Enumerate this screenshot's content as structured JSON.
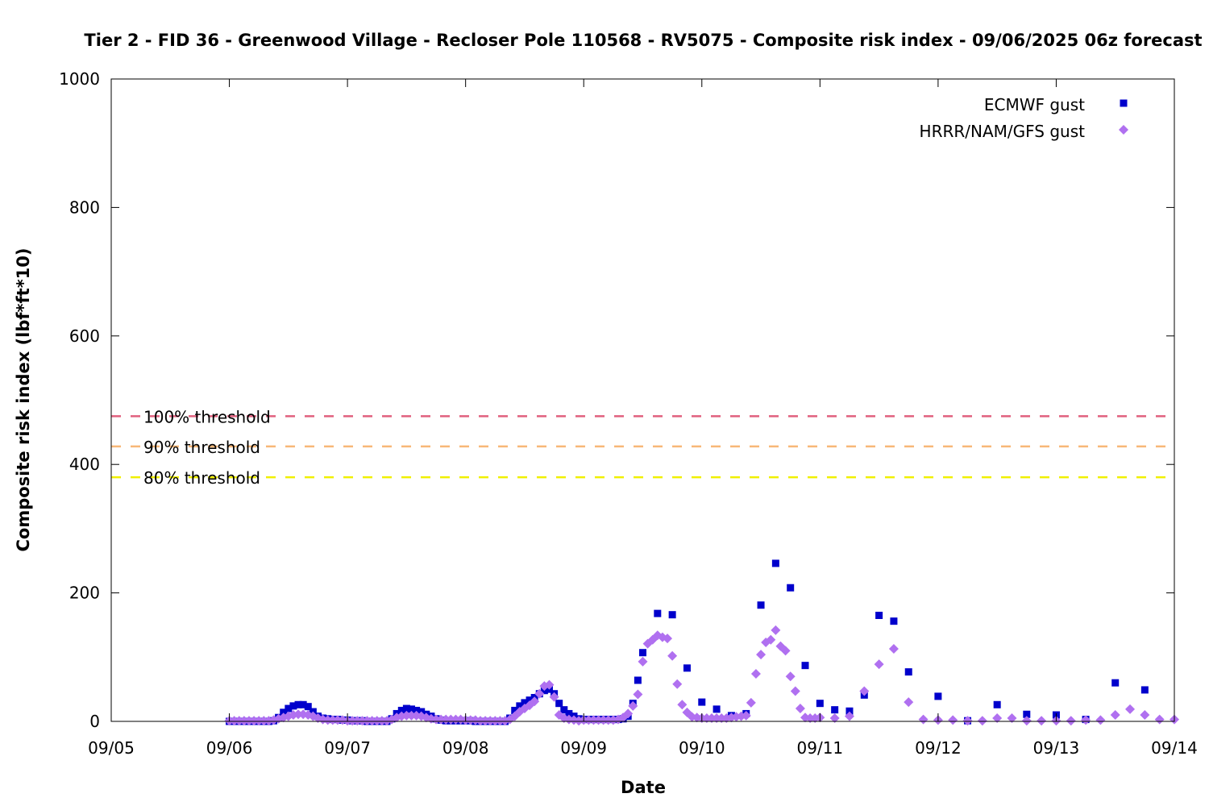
{
  "chart_data": {
    "type": "scatter",
    "title": "Tier 2 - FID 36 - Greenwood Village - Recloser Pole 110568 - RV5075 - Composite risk index - 09/06/2025 06z forecast",
    "xlabel": "Date",
    "ylabel": "Composite risk index (lbf*ft*10)",
    "xlim": [
      "2025-09-05",
      "2025-09-14"
    ],
    "ylim": [
      0,
      1000
    ],
    "x_ticks": [
      "09/05",
      "09/06",
      "09/07",
      "09/08",
      "09/09",
      "09/10",
      "09/11",
      "09/12",
      "09/13",
      "09/14"
    ],
    "y_ticks": [
      "0",
      "200",
      "400",
      "600",
      "800",
      "1000"
    ],
    "grid": false,
    "legend_position": "top-right",
    "thresholds": [
      {
        "label": "100% threshold",
        "value": 475,
        "color": "#e0607e"
      },
      {
        "label": "90% threshold",
        "value": 428,
        "color": "#f8b878"
      },
      {
        "label": "80% threshold",
        "value": 380,
        "color": "#f0f000"
      }
    ],
    "series": [
      {
        "name": "ECMWF gust",
        "color": "#0000cc",
        "marker": "square",
        "points": [
          [
            "2025-09-06 00:00",
            0
          ],
          [
            "2025-09-06 01:00",
            0
          ],
          [
            "2025-09-06 02:00",
            0
          ],
          [
            "2025-09-06 03:00",
            0
          ],
          [
            "2025-09-06 04:00",
            0
          ],
          [
            "2025-09-06 05:00",
            0
          ],
          [
            "2025-09-06 06:00",
            0
          ],
          [
            "2025-09-06 07:00",
            0
          ],
          [
            "2025-09-06 08:00",
            0
          ],
          [
            "2025-09-06 09:00",
            1
          ],
          [
            "2025-09-06 10:00",
            6
          ],
          [
            "2025-09-06 11:00",
            14
          ],
          [
            "2025-09-06 12:00",
            20
          ],
          [
            "2025-09-06 13:00",
            24
          ],
          [
            "2025-09-06 14:00",
            26
          ],
          [
            "2025-09-06 15:00",
            26
          ],
          [
            "2025-09-06 16:00",
            23
          ],
          [
            "2025-09-06 17:00",
            15
          ],
          [
            "2025-09-06 18:00",
            8
          ],
          [
            "2025-09-06 19:00",
            5
          ],
          [
            "2025-09-06 20:00",
            4
          ],
          [
            "2025-09-06 21:00",
            3
          ],
          [
            "2025-09-06 22:00",
            3
          ],
          [
            "2025-09-06 23:00",
            2
          ],
          [
            "2025-09-07 00:00",
            2
          ],
          [
            "2025-09-07 01:00",
            1
          ],
          [
            "2025-09-07 02:00",
            1
          ],
          [
            "2025-09-07 03:00",
            1
          ],
          [
            "2025-09-07 04:00",
            0
          ],
          [
            "2025-09-07 05:00",
            0
          ],
          [
            "2025-09-07 06:00",
            0
          ],
          [
            "2025-09-07 07:00",
            0
          ],
          [
            "2025-09-07 08:00",
            0
          ],
          [
            "2025-09-07 09:00",
            4
          ],
          [
            "2025-09-07 10:00",
            12
          ],
          [
            "2025-09-07 11:00",
            17
          ],
          [
            "2025-09-07 12:00",
            20
          ],
          [
            "2025-09-07 13:00",
            19
          ],
          [
            "2025-09-07 14:00",
            17
          ],
          [
            "2025-09-07 15:00",
            15
          ],
          [
            "2025-09-07 16:00",
            11
          ],
          [
            "2025-09-07 17:00",
            8
          ],
          [
            "2025-09-07 18:00",
            4
          ],
          [
            "2025-09-07 19:00",
            2
          ],
          [
            "2025-09-07 20:00",
            1
          ],
          [
            "2025-09-07 21:00",
            1
          ],
          [
            "2025-09-07 22:00",
            1
          ],
          [
            "2025-09-07 23:00",
            1
          ],
          [
            "2025-09-08 00:00",
            1
          ],
          [
            "2025-09-08 01:00",
            1
          ],
          [
            "2025-09-08 02:00",
            0
          ],
          [
            "2025-09-08 03:00",
            0
          ],
          [
            "2025-09-08 04:00",
            0
          ],
          [
            "2025-09-08 05:00",
            0
          ],
          [
            "2025-09-08 06:00",
            0
          ],
          [
            "2025-09-08 07:00",
            0
          ],
          [
            "2025-09-08 08:00",
            0
          ],
          [
            "2025-09-08 09:00",
            5
          ],
          [
            "2025-09-08 10:00",
            17
          ],
          [
            "2025-09-08 11:00",
            24
          ],
          [
            "2025-09-08 12:00",
            29
          ],
          [
            "2025-09-08 13:00",
            33
          ],
          [
            "2025-09-08 14:00",
            37
          ],
          [
            "2025-09-08 15:00",
            43
          ],
          [
            "2025-09-08 16:00",
            48
          ],
          [
            "2025-09-08 17:00",
            50
          ],
          [
            "2025-09-08 18:00",
            43
          ],
          [
            "2025-09-08 19:00",
            28
          ],
          [
            "2025-09-08 20:00",
            18
          ],
          [
            "2025-09-08 21:00",
            12
          ],
          [
            "2025-09-08 22:00",
            8
          ],
          [
            "2025-09-08 23:00",
            4
          ],
          [
            "2025-09-09 00:00",
            3
          ],
          [
            "2025-09-09 01:00",
            3
          ],
          [
            "2025-09-09 02:00",
            3
          ],
          [
            "2025-09-09 03:00",
            3
          ],
          [
            "2025-09-09 04:00",
            3
          ],
          [
            "2025-09-09 05:00",
            3
          ],
          [
            "2025-09-09 06:00",
            3
          ],
          [
            "2025-09-09 07:00",
            3
          ],
          [
            "2025-09-09 08:00",
            4
          ],
          [
            "2025-09-09 09:00",
            8
          ],
          [
            "2025-09-09 10:00",
            28
          ],
          [
            "2025-09-09 11:00",
            64
          ],
          [
            "2025-09-09 12:00",
            107
          ],
          [
            "2025-09-09 15:00",
            168
          ],
          [
            "2025-09-09 18:00",
            166
          ],
          [
            "2025-09-09 21:00",
            83
          ],
          [
            "2025-09-10 00:00",
            30
          ],
          [
            "2025-09-10 03:00",
            19
          ],
          [
            "2025-09-10 06:00",
            9
          ],
          [
            "2025-09-10 09:00",
            12
          ],
          [
            "2025-09-10 12:00",
            181
          ],
          [
            "2025-09-10 15:00",
            246
          ],
          [
            "2025-09-10 18:00",
            208
          ],
          [
            "2025-09-10 21:00",
            87
          ],
          [
            "2025-09-11 00:00",
            28
          ],
          [
            "2025-09-11 03:00",
            18
          ],
          [
            "2025-09-11 06:00",
            16
          ],
          [
            "2025-09-11 09:00",
            41
          ],
          [
            "2025-09-11 12:00",
            165
          ],
          [
            "2025-09-11 15:00",
            156
          ],
          [
            "2025-09-11 18:00",
            77
          ],
          [
            "2025-09-12 00:00",
            39
          ],
          [
            "2025-09-12 06:00",
            1
          ],
          [
            "2025-09-12 12:00",
            26
          ],
          [
            "2025-09-12 18:00",
            11
          ],
          [
            "2025-09-13 00:00",
            10
          ],
          [
            "2025-09-13 06:00",
            3
          ],
          [
            "2025-09-13 12:00",
            60
          ],
          [
            "2025-09-13 18:00",
            49
          ]
        ]
      },
      {
        "name": "HRRR/NAM/GFS gust",
        "color": "#b070f0",
        "marker": "diamond",
        "points": [
          [
            "2025-09-06 00:00",
            1
          ],
          [
            "2025-09-06 01:00",
            1
          ],
          [
            "2025-09-06 02:00",
            1
          ],
          [
            "2025-09-06 03:00",
            1
          ],
          [
            "2025-09-06 04:00",
            1
          ],
          [
            "2025-09-06 05:00",
            1
          ],
          [
            "2025-09-06 06:00",
            1
          ],
          [
            "2025-09-06 07:00",
            1
          ],
          [
            "2025-09-06 08:00",
            1
          ],
          [
            "2025-09-06 09:00",
            2
          ],
          [
            "2025-09-06 10:00",
            4
          ],
          [
            "2025-09-06 11:00",
            6
          ],
          [
            "2025-09-06 12:00",
            8
          ],
          [
            "2025-09-06 13:00",
            10
          ],
          [
            "2025-09-06 14:00",
            11
          ],
          [
            "2025-09-06 15:00",
            11
          ],
          [
            "2025-09-06 16:00",
            10
          ],
          [
            "2025-09-06 17:00",
            8
          ],
          [
            "2025-09-06 18:00",
            5
          ],
          [
            "2025-09-06 19:00",
            3
          ],
          [
            "2025-09-06 20:00",
            2
          ],
          [
            "2025-09-06 21:00",
            2
          ],
          [
            "2025-09-06 22:00",
            2
          ],
          [
            "2025-09-06 23:00",
            2
          ],
          [
            "2025-09-07 00:00",
            1
          ],
          [
            "2025-09-07 01:00",
            1
          ],
          [
            "2025-09-07 02:00",
            1
          ],
          [
            "2025-09-07 03:00",
            1
          ],
          [
            "2025-09-07 04:00",
            1
          ],
          [
            "2025-09-07 05:00",
            1
          ],
          [
            "2025-09-07 06:00",
            1
          ],
          [
            "2025-09-07 07:00",
            1
          ],
          [
            "2025-09-07 08:00",
            1
          ],
          [
            "2025-09-07 09:00",
            3
          ],
          [
            "2025-09-07 10:00",
            6
          ],
          [
            "2025-09-07 11:00",
            8
          ],
          [
            "2025-09-07 12:00",
            9
          ],
          [
            "2025-09-07 13:00",
            9
          ],
          [
            "2025-09-07 14:00",
            9
          ],
          [
            "2025-09-07 15:00",
            8
          ],
          [
            "2025-09-07 16:00",
            6
          ],
          [
            "2025-09-07 17:00",
            4
          ],
          [
            "2025-09-07 18:00",
            3
          ],
          [
            "2025-09-07 19:00",
            3
          ],
          [
            "2025-09-07 20:00",
            3
          ],
          [
            "2025-09-07 21:00",
            3
          ],
          [
            "2025-09-07 22:00",
            3
          ],
          [
            "2025-09-07 23:00",
            3
          ],
          [
            "2025-09-08 00:00",
            2
          ],
          [
            "2025-09-08 01:00",
            2
          ],
          [
            "2025-09-08 02:00",
            2
          ],
          [
            "2025-09-08 03:00",
            1
          ],
          [
            "2025-09-08 04:00",
            1
          ],
          [
            "2025-09-08 05:00",
            1
          ],
          [
            "2025-09-08 06:00",
            1
          ],
          [
            "2025-09-08 07:00",
            1
          ],
          [
            "2025-09-08 08:00",
            1
          ],
          [
            "2025-09-08 09:00",
            3
          ],
          [
            "2025-09-08 10:00",
            8
          ],
          [
            "2025-09-08 11:00",
            15
          ],
          [
            "2025-09-08 12:00",
            20
          ],
          [
            "2025-09-08 13:00",
            25
          ],
          [
            "2025-09-08 14:00",
            31
          ],
          [
            "2025-09-08 15:00",
            43
          ],
          [
            "2025-09-08 16:00",
            55
          ],
          [
            "2025-09-08 17:00",
            57
          ],
          [
            "2025-09-08 18:00",
            38
          ],
          [
            "2025-09-08 19:00",
            10
          ],
          [
            "2025-09-08 20:00",
            5
          ],
          [
            "2025-09-08 21:00",
            3
          ],
          [
            "2025-09-08 22:00",
            2
          ],
          [
            "2025-09-08 23:00",
            1
          ],
          [
            "2025-09-09 00:00",
            2
          ],
          [
            "2025-09-09 01:00",
            2
          ],
          [
            "2025-09-09 02:00",
            2
          ],
          [
            "2025-09-09 03:00",
            2
          ],
          [
            "2025-09-09 04:00",
            2
          ],
          [
            "2025-09-09 05:00",
            2
          ],
          [
            "2025-09-09 06:00",
            2
          ],
          [
            "2025-09-09 07:00",
            3
          ],
          [
            "2025-09-09 08:00",
            6
          ],
          [
            "2025-09-09 09:00",
            12
          ],
          [
            "2025-09-09 10:00",
            24
          ],
          [
            "2025-09-09 11:00",
            42
          ],
          [
            "2025-09-09 12:00",
            93
          ],
          [
            "2025-09-09 13:00",
            121
          ],
          [
            "2025-09-09 14:00",
            127
          ],
          [
            "2025-09-09 15:00",
            134
          ],
          [
            "2025-09-09 16:00",
            131
          ],
          [
            "2025-09-09 17:00",
            129
          ],
          [
            "2025-09-09 18:00",
            102
          ],
          [
            "2025-09-09 19:00",
            58
          ],
          [
            "2025-09-09 20:00",
            26
          ],
          [
            "2025-09-09 21:00",
            14
          ],
          [
            "2025-09-09 22:00",
            7
          ],
          [
            "2025-09-09 23:00",
            6
          ],
          [
            "2025-09-10 00:00",
            5
          ],
          [
            "2025-09-10 01:00",
            5
          ],
          [
            "2025-09-10 02:00",
            5
          ],
          [
            "2025-09-10 03:00",
            5
          ],
          [
            "2025-09-10 04:00",
            5
          ],
          [
            "2025-09-10 05:00",
            5
          ],
          [
            "2025-09-10 06:00",
            6
          ],
          [
            "2025-09-10 07:00",
            7
          ],
          [
            "2025-09-10 08:00",
            8
          ],
          [
            "2025-09-10 09:00",
            9
          ],
          [
            "2025-09-10 10:00",
            29
          ],
          [
            "2025-09-10 11:00",
            74
          ],
          [
            "2025-09-10 12:00",
            104
          ],
          [
            "2025-09-10 13:00",
            123
          ],
          [
            "2025-09-10 14:00",
            127
          ],
          [
            "2025-09-10 15:00",
            142
          ],
          [
            "2025-09-10 16:00",
            117
          ],
          [
            "2025-09-10 17:00",
            110
          ],
          [
            "2025-09-10 18:00",
            70
          ],
          [
            "2025-09-10 19:00",
            47
          ],
          [
            "2025-09-10 20:00",
            20
          ],
          [
            "2025-09-10 21:00",
            6
          ],
          [
            "2025-09-10 22:00",
            5
          ],
          [
            "2025-09-10 23:00",
            5
          ],
          [
            "2025-09-11 00:00",
            6
          ],
          [
            "2025-09-11 03:00",
            5
          ],
          [
            "2025-09-11 06:00",
            8
          ],
          [
            "2025-09-11 09:00",
            47
          ],
          [
            "2025-09-11 12:00",
            89
          ],
          [
            "2025-09-11 15:00",
            113
          ],
          [
            "2025-09-11 18:00",
            30
          ],
          [
            "2025-09-11 21:00",
            3
          ],
          [
            "2025-09-12 00:00",
            2
          ],
          [
            "2025-09-12 03:00",
            2
          ],
          [
            "2025-09-12 06:00",
            1
          ],
          [
            "2025-09-12 09:00",
            1
          ],
          [
            "2025-09-12 12:00",
            5
          ],
          [
            "2025-09-12 15:00",
            5
          ],
          [
            "2025-09-12 18:00",
            1
          ],
          [
            "2025-09-12 21:00",
            1
          ],
          [
            "2025-09-13 00:00",
            1
          ],
          [
            "2025-09-13 03:00",
            1
          ],
          [
            "2025-09-13 06:00",
            2
          ],
          [
            "2025-09-13 09:00",
            2
          ],
          [
            "2025-09-13 12:00",
            10
          ],
          [
            "2025-09-13 15:00",
            19
          ],
          [
            "2025-09-13 18:00",
            10
          ],
          [
            "2025-09-13 21:00",
            3
          ],
          [
            "2025-09-14 00:00",
            3
          ]
        ]
      }
    ]
  }
}
